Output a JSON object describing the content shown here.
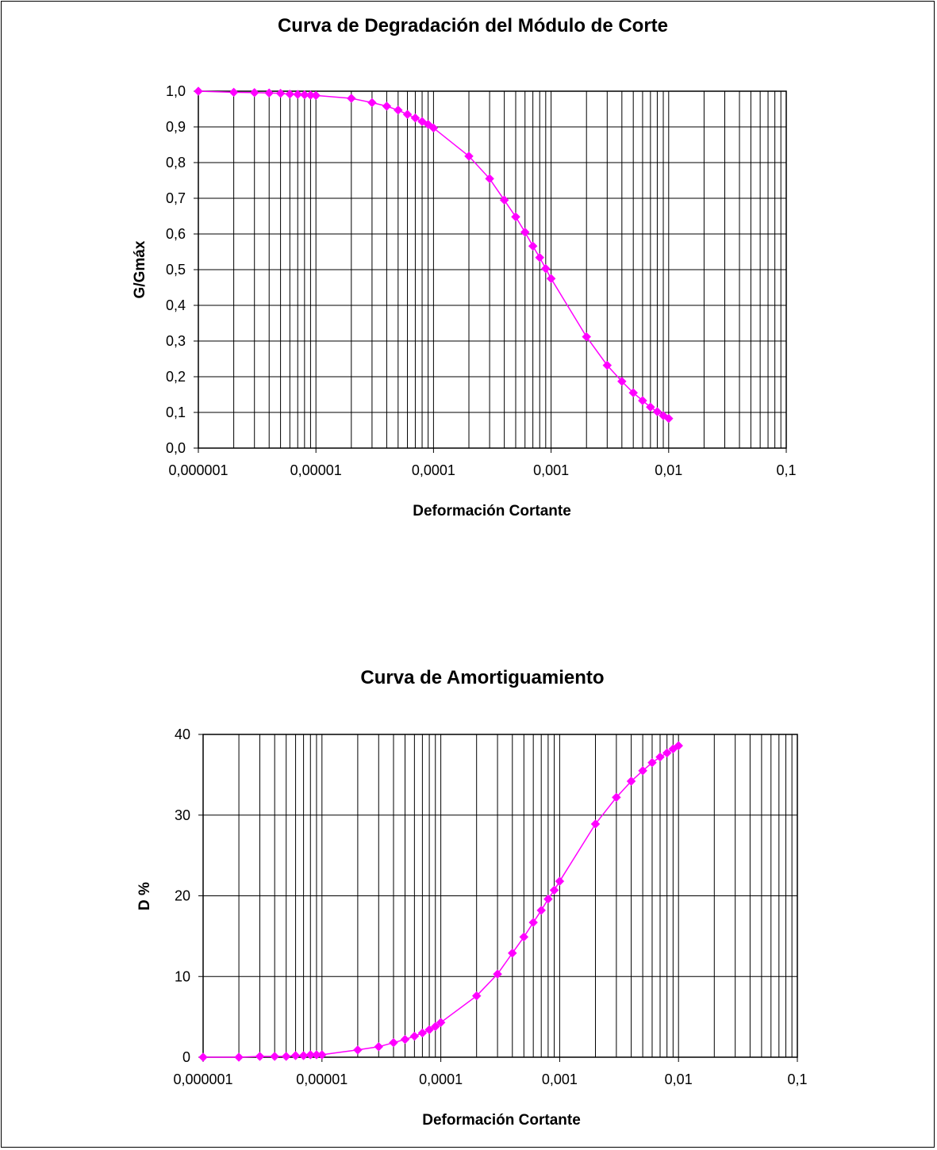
{
  "chart_data": [
    {
      "type": "line",
      "title": "Curva de Degradación del Módulo de Corte",
      "xlabel": "Deformación Cortante",
      "ylabel": "G/Gmáx",
      "xscale": "log",
      "xlim": [
        1e-06,
        0.1
      ],
      "ylim": [
        0,
        1
      ],
      "x_tick_labels": [
        "0,000001",
        "0,00001",
        "0,0001",
        "0,001",
        "0,01",
        "0,1"
      ],
      "y_tick_labels": [
        "0,0",
        "0,1",
        "0,2",
        "0,3",
        "0,4",
        "0,5",
        "0,6",
        "0,7",
        "0,8",
        "0,9",
        "1,0"
      ],
      "grid": true,
      "legend": "none",
      "series_color": "#ff00ff",
      "marker": "diamond",
      "x": [
        1e-06,
        2e-06,
        3e-06,
        4e-06,
        5e-06,
        6e-06,
        7e-06,
        8e-06,
        9e-06,
        1e-05,
        2e-05,
        3e-05,
        4e-05,
        5e-05,
        6e-05,
        7e-05,
        8e-05,
        9e-05,
        0.0001,
        0.0002,
        0.0003,
        0.0004,
        0.0005,
        0.0006,
        0.0007,
        0.0008,
        0.0009,
        0.001,
        0.002,
        0.003,
        0.004,
        0.005,
        0.006,
        0.007,
        0.008,
        0.009,
        0.01
      ],
      "y": [
        1.0,
        0.997,
        0.996,
        0.995,
        0.994,
        0.992,
        0.991,
        0.99,
        0.989,
        0.988,
        0.98,
        0.968,
        0.958,
        0.947,
        0.935,
        0.925,
        0.915,
        0.907,
        0.897,
        0.818,
        0.755,
        0.695,
        0.648,
        0.605,
        0.566,
        0.534,
        0.503,
        0.475,
        0.312,
        0.232,
        0.187,
        0.155,
        0.133,
        0.115,
        0.102,
        0.091,
        0.083
      ]
    },
    {
      "type": "line",
      "title": "Curva de Amortiguamiento",
      "xlabel": "Deformación Cortante",
      "ylabel": "D %",
      "xscale": "log",
      "xlim": [
        1e-06,
        0.1
      ],
      "ylim": [
        0,
        40
      ],
      "x_tick_labels": [
        "0,000001",
        "0,00001",
        "0,0001",
        "0,001",
        "0,01",
        "0,1"
      ],
      "y_tick_labels": [
        "0",
        "10",
        "20",
        "30",
        "40"
      ],
      "grid": true,
      "legend": "none",
      "series_color": "#ff00ff",
      "marker": "diamond",
      "x": [
        1e-06,
        2e-06,
        3e-06,
        4e-06,
        5e-06,
        6e-06,
        7e-06,
        8e-06,
        9e-06,
        1e-05,
        2e-05,
        3e-05,
        4e-05,
        5e-05,
        6e-05,
        7e-05,
        8e-05,
        9e-05,
        0.0001,
        0.0002,
        0.0003,
        0.0004,
        0.0005,
        0.0006,
        0.0007,
        0.0008,
        0.0009,
        0.001,
        0.002,
        0.003,
        0.004,
        0.005,
        0.006,
        0.007,
        0.008,
        0.009,
        0.01
      ],
      "y": [
        0.0,
        0.0,
        0.1,
        0.1,
        0.1,
        0.2,
        0.2,
        0.3,
        0.3,
        0.3,
        0.9,
        1.3,
        1.8,
        2.2,
        2.6,
        3.0,
        3.4,
        3.8,
        4.3,
        7.6,
        10.3,
        12.9,
        14.9,
        16.7,
        18.2,
        19.6,
        20.7,
        21.8,
        28.9,
        32.2,
        34.2,
        35.5,
        36.5,
        37.2,
        37.7,
        38.2,
        38.6
      ]
    }
  ]
}
